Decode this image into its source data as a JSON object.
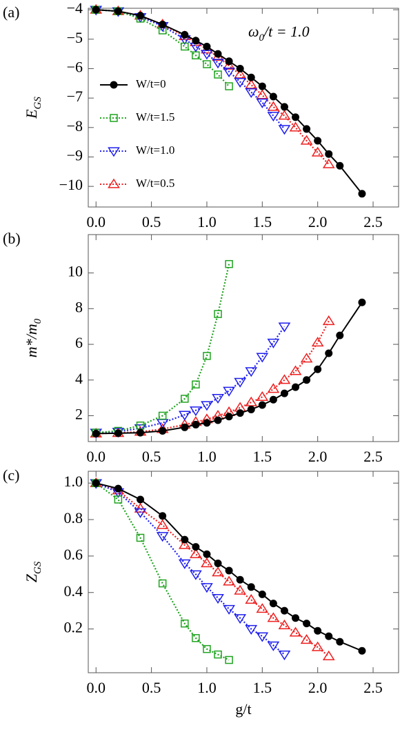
{
  "chart_data": [
    {
      "type": "line",
      "panel": "(a)",
      "ylabel": [
        {
          "text": "E"
        },
        {
          "text": "GS",
          "sub": true
        }
      ],
      "annotation": [
        {
          "text": "ω"
        },
        {
          "text": "0",
          "sub": true
        },
        {
          "text": "/t = 1.0"
        }
      ],
      "xlim": [
        -0.07,
        2.73
      ],
      "ylim": [
        -10.7,
        -3.95
      ],
      "xticks": [
        {
          "value": 0,
          "label": "0.0"
        },
        0.5,
        {
          "value": 1,
          "label": "1.0"
        },
        1.5,
        {
          "value": 2,
          "label": "2.0"
        },
        2.5
      ],
      "yticks": [
        {
          "value": -4,
          "label": "−4"
        },
        {
          "value": -5,
          "label": "−5"
        },
        {
          "value": -6,
          "label": "−6"
        },
        {
          "value": -7,
          "label": "−7"
        },
        {
          "value": -8,
          "label": "−8"
        },
        {
          "value": -9,
          "label": "−9"
        },
        {
          "value": -10,
          "label": "−10"
        }
      ],
      "legend": "left",
      "series": [
        {
          "name": "W/t=0",
          "color": "#000000",
          "marker": "circle",
          "dash": "solid",
          "x": [
            0,
            0.2,
            0.4,
            0.6,
            0.8,
            0.9,
            1.0,
            1.1,
            1.2,
            1.3,
            1.4,
            1.5,
            1.6,
            1.7,
            1.8,
            1.9,
            2.0,
            2.1,
            2.2,
            2.4
          ],
          "values": [
            -4.0,
            -4.05,
            -4.2,
            -4.5,
            -4.85,
            -5.05,
            -5.25,
            -5.5,
            -5.75,
            -6.0,
            -6.3,
            -6.6,
            -6.95,
            -7.3,
            -7.65,
            -8.05,
            -8.45,
            -8.9,
            -9.3,
            -10.25
          ]
        },
        {
          "name": "W/t=1.5",
          "color": "#1ea31e",
          "marker": "square",
          "dash": "dotted",
          "x": [
            0,
            0.2,
            0.4,
            0.6,
            0.8,
            0.9,
            1.0,
            1.1,
            1.2
          ],
          "values": [
            -4.0,
            -4.05,
            -4.3,
            -4.7,
            -5.25,
            -5.55,
            -5.85,
            -6.2,
            -6.6
          ]
        },
        {
          "name": "W/t=1.0",
          "color": "#1e1eee",
          "marker": "triangle-down",
          "dash": "dotted",
          "x": [
            0,
            0.2,
            0.4,
            0.6,
            0.8,
            0.9,
            1.0,
            1.1,
            1.2,
            1.3,
            1.4,
            1.5,
            1.6,
            1.7
          ],
          "values": [
            -4.0,
            -4.05,
            -4.25,
            -4.55,
            -5.0,
            -5.25,
            -5.5,
            -5.8,
            -6.1,
            -6.45,
            -6.8,
            -7.15,
            -7.6,
            -8.05
          ]
        },
        {
          "name": "W/t=0.5",
          "color": "#ee1e1e",
          "marker": "triangle-up",
          "dash": "dotted",
          "x": [
            0,
            0.2,
            0.4,
            0.6,
            0.8,
            0.9,
            1.0,
            1.1,
            1.2,
            1.3,
            1.4,
            1.5,
            1.6,
            1.7,
            1.8,
            1.9,
            2.0,
            2.1
          ],
          "values": [
            -4.0,
            -4.05,
            -4.2,
            -4.5,
            -4.9,
            -5.1,
            -5.35,
            -5.6,
            -5.9,
            -6.2,
            -6.55,
            -6.9,
            -7.3,
            -7.6,
            -8.0,
            -8.45,
            -8.85,
            -9.25
          ]
        }
      ]
    },
    {
      "type": "line",
      "panel": "(b)",
      "ylabel": [
        {
          "text": "m*/m"
        },
        {
          "text": "0",
          "sub": true
        }
      ],
      "xlim": [
        -0.07,
        2.73
      ],
      "ylim": [
        0.55,
        12.15
      ],
      "xticks": [
        {
          "value": 0,
          "label": "0.0"
        },
        0.5,
        {
          "value": 1,
          "label": "1.0"
        },
        1.5,
        {
          "value": 2,
          "label": "2.0"
        },
        2.5
      ],
      "yticks": [
        2,
        4,
        6,
        8,
        10
      ],
      "series": [
        {
          "color": "#000000",
          "marker": "circle",
          "dash": "solid",
          "x": [
            0,
            0.2,
            0.4,
            0.6,
            0.8,
            0.9,
            1.0,
            1.1,
            1.2,
            1.3,
            1.4,
            1.5,
            1.6,
            1.7,
            1.8,
            1.9,
            2.0,
            2.1,
            2.2,
            2.4
          ],
          "values": [
            1.0,
            1.02,
            1.05,
            1.15,
            1.35,
            1.5,
            1.6,
            1.75,
            1.95,
            2.15,
            2.35,
            2.6,
            2.9,
            3.25,
            3.6,
            4.0,
            4.6,
            5.5,
            6.5,
            8.35
          ]
        },
        {
          "color": "#1ea31e",
          "marker": "square",
          "dash": "dotted",
          "x": [
            0,
            0.2,
            0.4,
            0.6,
            0.8,
            0.9,
            1.0,
            1.1,
            1.2
          ],
          "values": [
            1.05,
            1.15,
            1.45,
            2.0,
            2.95,
            3.75,
            5.35,
            7.7,
            10.5
          ]
        },
        {
          "color": "#1e1eee",
          "marker": "triangle-down",
          "dash": "dotted",
          "x": [
            0,
            0.2,
            0.4,
            0.6,
            0.8,
            0.9,
            1.0,
            1.1,
            1.2,
            1.3,
            1.4,
            1.5,
            1.6,
            1.7
          ],
          "values": [
            1.05,
            1.1,
            1.3,
            1.6,
            2.05,
            2.3,
            2.6,
            3.0,
            3.4,
            3.9,
            4.5,
            5.3,
            6.1,
            7.0
          ]
        },
        {
          "color": "#ee1e1e",
          "marker": "triangle-up",
          "dash": "dotted",
          "x": [
            0,
            0.2,
            0.4,
            0.6,
            0.8,
            0.9,
            1.0,
            1.1,
            1.2,
            1.3,
            1.4,
            1.5,
            1.6,
            1.7,
            1.8,
            1.9,
            2.0,
            2.1
          ],
          "values": [
            1.0,
            1.03,
            1.1,
            1.25,
            1.5,
            1.65,
            1.8,
            2.0,
            2.2,
            2.45,
            2.75,
            3.05,
            3.5,
            4.0,
            4.5,
            5.2,
            6.1,
            7.3
          ]
        }
      ]
    },
    {
      "type": "line",
      "panel": "(c)",
      "ylabel": [
        {
          "text": "Z"
        },
        {
          "text": "GS",
          "sub": true
        }
      ],
      "xlabel": "g/t",
      "xlim": [
        -0.07,
        2.73
      ],
      "ylim": [
        -0.04,
        1.065
      ],
      "xticks": [
        {
          "value": 0,
          "label": "0.0"
        },
        0.5,
        {
          "value": 1,
          "label": "1.0"
        },
        1.5,
        {
          "value": 2,
          "label": "2.0"
        },
        2.5
      ],
      "yticks": [
        0.2,
        0.4,
        0.6,
        0.8,
        {
          "value": 1,
          "label": "1.0"
        }
      ],
      "series": [
        {
          "color": "#000000",
          "marker": "circle",
          "dash": "solid",
          "x": [
            0,
            0.2,
            0.4,
            0.6,
            0.8,
            0.9,
            1.0,
            1.1,
            1.2,
            1.3,
            1.4,
            1.5,
            1.6,
            1.7,
            1.8,
            1.9,
            2.0,
            2.1,
            2.2,
            2.4
          ],
          "values": [
            1.0,
            0.97,
            0.91,
            0.82,
            0.69,
            0.65,
            0.61,
            0.56,
            0.52,
            0.47,
            0.43,
            0.39,
            0.34,
            0.3,
            0.26,
            0.23,
            0.19,
            0.16,
            0.13,
            0.08
          ]
        },
        {
          "color": "#1ea31e",
          "marker": "square",
          "dash": "dotted",
          "x": [
            0,
            0.2,
            0.4,
            0.6,
            0.8,
            0.9,
            1.0,
            1.1,
            1.2
          ],
          "values": [
            1.0,
            0.91,
            0.7,
            0.45,
            0.23,
            0.15,
            0.09,
            0.06,
            0.03
          ]
        },
        {
          "color": "#1e1eee",
          "marker": "triangle-down",
          "dash": "dotted",
          "x": [
            0,
            0.2,
            0.4,
            0.6,
            0.8,
            0.9,
            1.0,
            1.1,
            1.2,
            1.3,
            1.4,
            1.5,
            1.6,
            1.7
          ],
          "values": [
            1.0,
            0.95,
            0.84,
            0.71,
            0.56,
            0.5,
            0.43,
            0.37,
            0.31,
            0.26,
            0.2,
            0.16,
            0.11,
            0.06
          ]
        },
        {
          "color": "#ee1e1e",
          "marker": "triangle-up",
          "dash": "dotted",
          "x": [
            0,
            0.2,
            0.4,
            0.6,
            0.8,
            0.9,
            1.0,
            1.1,
            1.2,
            1.3,
            1.4,
            1.5,
            1.6,
            1.7,
            1.8,
            1.9,
            2.0,
            2.1
          ],
          "values": [
            1.0,
            0.96,
            0.86,
            0.77,
            0.66,
            0.61,
            0.56,
            0.51,
            0.46,
            0.41,
            0.36,
            0.31,
            0.26,
            0.22,
            0.18,
            0.14,
            0.1,
            0.05
          ]
        }
      ]
    }
  ]
}
